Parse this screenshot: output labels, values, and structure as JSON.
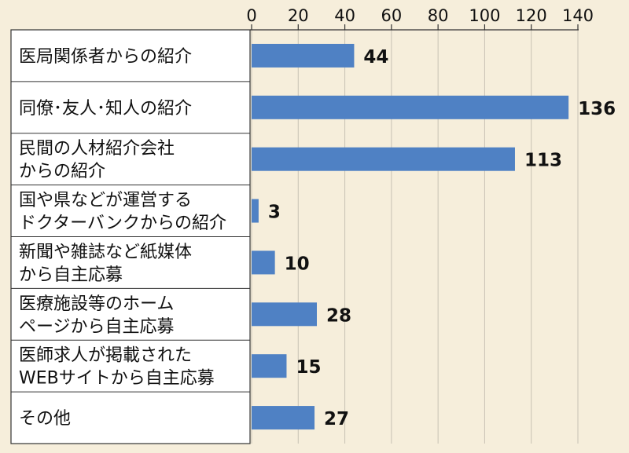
{
  "chart_data": {
    "type": "bar",
    "orientation": "horizontal",
    "title": "",
    "xlabel": "",
    "ylabel": "",
    "xlim": [
      0,
      140
    ],
    "ticks": [
      0,
      20,
      40,
      60,
      80,
      100,
      120,
      140
    ],
    "grid": true,
    "legend": "none",
    "bar_color": "#4f81c4",
    "categories": [
      [
        "医局関係者からの紹介"
      ],
      [
        "同僚･友人･知人の紹介"
      ],
      [
        "民間の人材紹介会社",
        "からの紹介"
      ],
      [
        "国や県などが運営する",
        "ドクターバンクからの紹介"
      ],
      [
        "新聞や雑誌など紙媒体",
        "から自主応募"
      ],
      [
        "医療施設等のホーム",
        "ページから自主応募"
      ],
      [
        "医師求人が掲載された",
        "WEBサイトから自主応募"
      ],
      [
        "その他"
      ]
    ],
    "values": [
      44,
      136,
      113,
      3,
      10,
      28,
      15,
      27
    ]
  }
}
